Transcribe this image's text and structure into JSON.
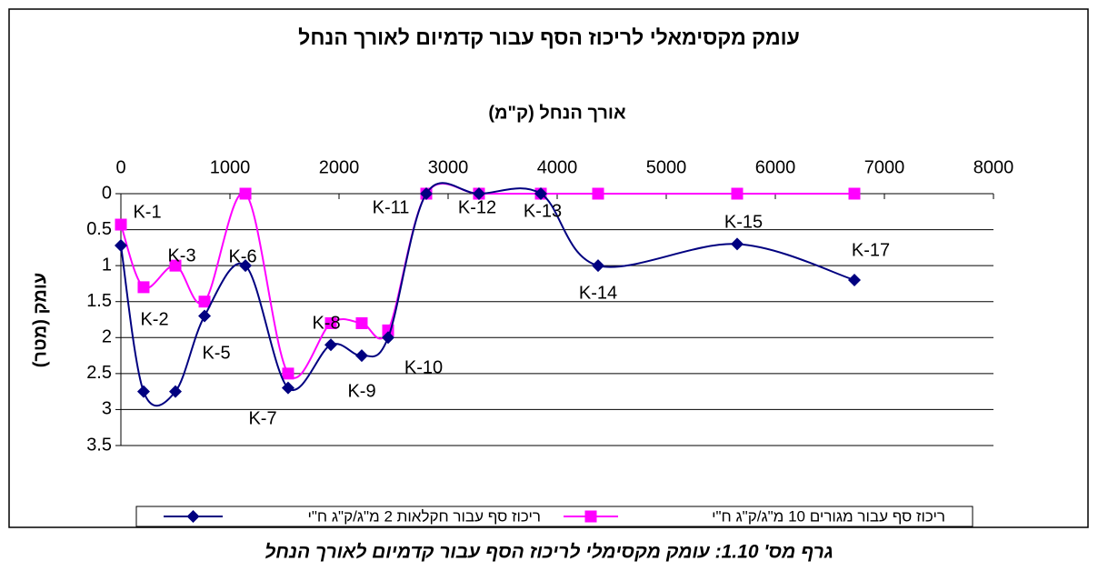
{
  "chart_data": {
    "type": "line",
    "title": "עומק מקסימאלי לריכוז הסף עבור קדמיום לאורך הנחל",
    "x_label": "אורך הנחל (ק\"מ)",
    "y_label": "עומק (מטר)",
    "caption": "גרף מס' 1.10: עומק מקסימלי לריכוז הסף עבור קדמיום לאורך הנחל",
    "x": [
      0,
      208,
      500,
      767,
      1142,
      1533,
      1925,
      2208,
      2450,
      2800,
      3283,
      3850,
      4375,
      5650,
      6725
    ],
    "point_labels": [
      "K-1",
      "K-2",
      "K-3",
      "K-5",
      "K-6",
      "K-7",
      "K-8",
      "K-9",
      "K-10",
      "K-11",
      "K-12",
      "K-13",
      "K-14",
      "K-15",
      "K-17"
    ],
    "series": [
      {
        "name": "ריכוז סף עבור חקלאות 2 מ\"ג/ק\"ג ח\"י",
        "color": "#000080",
        "marker": "diamond",
        "values": [
          0.72,
          2.75,
          2.75,
          1.7,
          1.0,
          2.7,
          2.1,
          2.25,
          2.0,
          0,
          0,
          0,
          1.0,
          0.7,
          1.2
        ]
      },
      {
        "name": "ריכוז סף עבור מגורים 10 מ\"ג/ק\"ג ח\"י",
        "color": "#ff00ff",
        "marker": "square",
        "values": [
          0.43,
          1.3,
          1.0,
          1.5,
          0,
          2.5,
          1.8,
          1.8,
          1.9,
          0,
          0,
          0,
          0,
          0,
          0
        ]
      }
    ],
    "xlim": [
      0,
      8000
    ],
    "xticks": [
      0,
      1000,
      2000,
      3000,
      4000,
      5000,
      6000,
      7000,
      8000
    ],
    "ylim": [
      0,
      3.5
    ],
    "yticks": [
      0,
      0.5,
      1,
      1.5,
      2,
      2.5,
      3,
      3.5
    ],
    "y_inverted": true,
    "x_axis_top": true,
    "smooth": true,
    "grid": true,
    "legend": "bottom"
  }
}
